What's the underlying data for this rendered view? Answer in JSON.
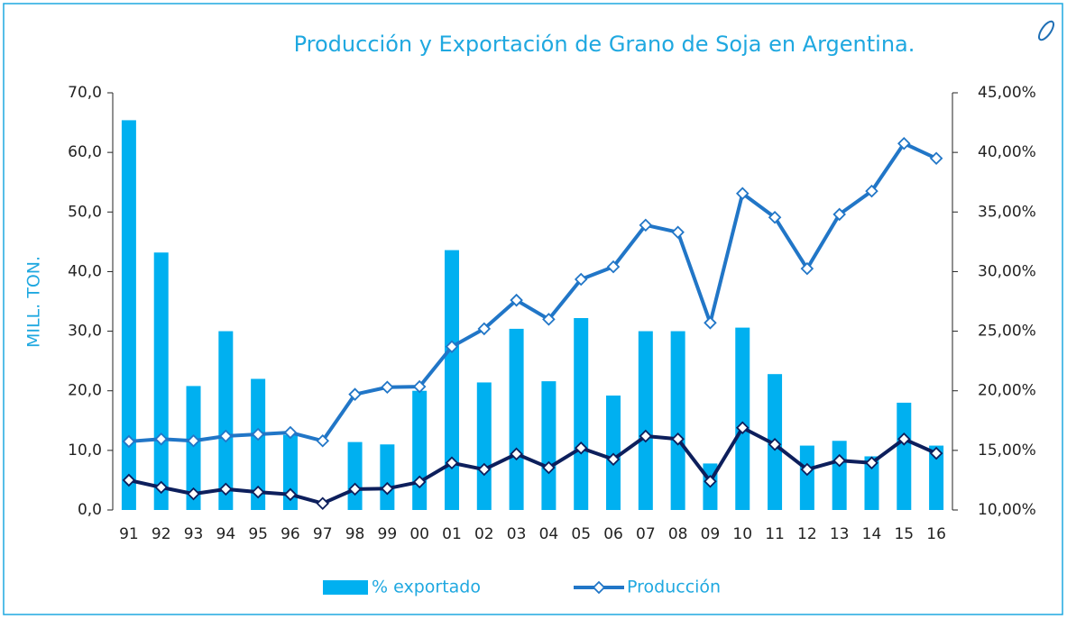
{
  "chart_data": {
    "type": "bar_line",
    "title": "Producción y Exportación de Grano de Soja en Argentina.",
    "ylabel": "MILL. TON.",
    "categories": [
      "91",
      "92",
      "93",
      "94",
      "95",
      "96",
      "97",
      "98",
      "99",
      "00",
      "01",
      "02",
      "03",
      "04",
      "05",
      "06",
      "07",
      "08",
      "09",
      "10",
      "11",
      "12",
      "13",
      "14",
      "15",
      "16"
    ],
    "series": [
      {
        "name": "% exportado",
        "type": "bar",
        "axis": "y2",
        "color": "#00b0f0",
        "values": [
          42.7,
          31.6,
          20.4,
          25.0,
          21.0,
          16.3,
          null,
          15.7,
          15.5,
          20.0,
          31.8,
          20.7,
          25.2,
          20.8,
          26.1,
          19.6,
          25.0,
          25.0,
          13.9,
          25.3,
          21.4,
          15.4,
          15.8,
          14.5,
          19.0,
          15.4
        ]
      },
      {
        "name": "Producción",
        "type": "line",
        "color": "#2176c7",
        "values": [
          11.5,
          11.9,
          11.6,
          12.4,
          12.7,
          13.0,
          11.6,
          19.4,
          20.6,
          20.7,
          27.4,
          30.4,
          35.2,
          32.0,
          38.7,
          40.8,
          47.8,
          46.6,
          31.4,
          53.1,
          49.1,
          40.5,
          49.6,
          53.5,
          61.5,
          59.0
        ]
      },
      {
        "type": "line",
        "color": "#0d1f5c",
        "values": [
          5.0,
          3.8,
          2.7,
          3.5,
          3.0,
          2.6,
          1.1,
          3.5,
          3.6,
          4.7,
          7.9,
          6.8,
          9.4,
          7.1,
          10.4,
          8.5,
          12.4,
          11.9,
          4.8,
          13.8,
          11.0,
          6.8,
          8.3,
          7.9,
          11.9,
          9.5
        ]
      }
    ],
    "ylim": [
      0,
      70
    ],
    "yticks": [
      {
        "value": 0,
        "label": "0,0"
      },
      {
        "value": 10,
        "label": "10,0"
      },
      {
        "value": 20,
        "label": "20,0"
      },
      {
        "value": 30,
        "label": "30,0"
      },
      {
        "value": 40,
        "label": "40,0"
      },
      {
        "value": 50,
        "label": "50,0"
      },
      {
        "value": 60,
        "label": "60,0"
      },
      {
        "value": 70,
        "label": "70,0"
      }
    ],
    "y2lim": [
      10,
      45
    ],
    "y2ticks": [
      {
        "value": 10,
        "label": "10,00%"
      },
      {
        "value": 15,
        "label": "15,00%"
      },
      {
        "value": 20,
        "label": "20,00%"
      },
      {
        "value": 25,
        "label": "25,00%"
      },
      {
        "value": 30,
        "label": "30,00%"
      },
      {
        "value": 35,
        "label": "35,00%"
      },
      {
        "value": 40,
        "label": "40,00%"
      },
      {
        "value": 45,
        "label": "45,00%"
      }
    ],
    "legend": "bottom"
  }
}
